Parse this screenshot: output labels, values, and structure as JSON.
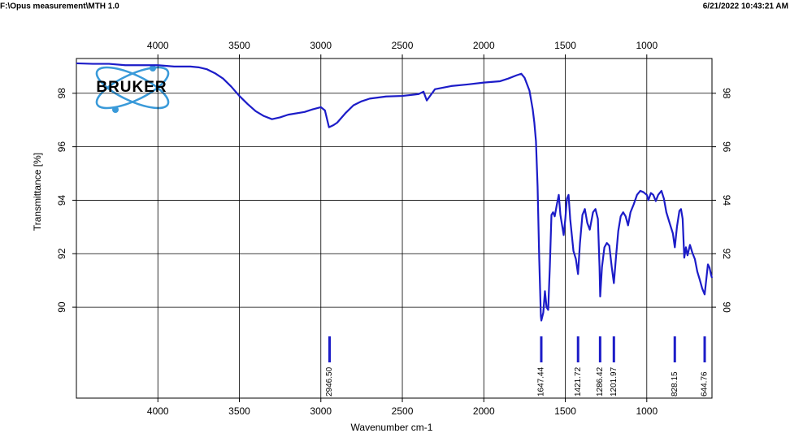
{
  "chart_data": {
    "type": "line",
    "title": "F:\\Opus measurement\\MTH 1.0",
    "timestamp": "6/21/2022 10:43:21 AM",
    "xlabel": "Wavenumber cm-1",
    "ylabel": "Transmittance [%]",
    "logo": "BRUKER",
    "xlim": [
      4500,
      600
    ],
    "ylim": [
      86.6,
      99.3
    ],
    "xticks": [
      4000,
      3500,
      3000,
      2500,
      2000,
      1500,
      1000
    ],
    "yticks": [
      90,
      92,
      94,
      96,
      98
    ],
    "grid": true,
    "color": "#1c1cc8",
    "x": [
      4500,
      4400,
      4300,
      4200,
      4100,
      4000,
      3900,
      3800,
      3750,
      3700,
      3650,
      3600,
      3550,
      3500,
      3450,
      3400,
      3350,
      3300,
      3250,
      3200,
      3100,
      3050,
      3000,
      2975,
      2950,
      2925,
      2900,
      2850,
      2800,
      2750,
      2700,
      2600,
      2500,
      2400,
      2370,
      2350,
      2330,
      2300,
      2200,
      2100,
      2000,
      1900,
      1850,
      1800,
      1770,
      1750,
      1720,
      1700,
      1690,
      1680,
      1670,
      1660,
      1650,
      1647,
      1635,
      1625,
      1615,
      1605,
      1595,
      1585,
      1575,
      1565,
      1550,
      1540,
      1530,
      1510,
      1500,
      1490,
      1480,
      1470,
      1450,
      1435,
      1422,
      1410,
      1395,
      1380,
      1365,
      1350,
      1330,
      1315,
      1300,
      1290,
      1286,
      1275,
      1260,
      1245,
      1230,
      1215,
      1202,
      1190,
      1175,
      1160,
      1145,
      1130,
      1115,
      1100,
      1080,
      1060,
      1040,
      1020,
      1000,
      990,
      975,
      960,
      945,
      930,
      910,
      895,
      880,
      860,
      840,
      828,
      815,
      800,
      790,
      780,
      770,
      760,
      750,
      735,
      720,
      705,
      690,
      675,
      660,
      645,
      635,
      625,
      615,
      605,
      600
    ],
    "series": [
      {
        "values": [
          99.12,
          99.1,
          99.1,
          99.05,
          99.05,
          99.05,
          99.0,
          99.0,
          98.97,
          98.9,
          98.75,
          98.55,
          98.25,
          97.9,
          97.6,
          97.33,
          97.15,
          97.03,
          97.1,
          97.2,
          97.3,
          97.4,
          97.48,
          97.36,
          96.73,
          96.8,
          96.9,
          97.25,
          97.55,
          97.7,
          97.8,
          97.88,
          97.9,
          97.97,
          98.06,
          97.73,
          97.9,
          98.15,
          98.27,
          98.33,
          98.4,
          98.45,
          98.55,
          98.67,
          98.73,
          98.58,
          98.1,
          97.4,
          96.9,
          96.2,
          94.5,
          91.8,
          89.67,
          89.5,
          89.8,
          90.6,
          90.0,
          89.9,
          91.5,
          93.45,
          93.55,
          93.4,
          93.9,
          94.2,
          93.45,
          92.7,
          93.3,
          94.06,
          94.2,
          93.3,
          92.1,
          91.8,
          91.24,
          92.4,
          93.45,
          93.67,
          93.15,
          92.9,
          93.55,
          93.67,
          93.3,
          91.5,
          90.4,
          91.5,
          92.24,
          92.4,
          92.3,
          91.5,
          90.9,
          91.8,
          92.85,
          93.4,
          93.55,
          93.4,
          93.06,
          93.55,
          93.85,
          94.2,
          94.35,
          94.3,
          94.2,
          94.0,
          94.27,
          94.2,
          93.97,
          94.2,
          94.35,
          94.06,
          93.55,
          93.15,
          92.76,
          92.24,
          93.0,
          93.6,
          93.67,
          93.3,
          91.85,
          92.24,
          91.94,
          92.33,
          92.03,
          91.8,
          91.33,
          91.03,
          90.7,
          90.48,
          91.03,
          91.6,
          91.48,
          91.2,
          91.1
        ]
      }
    ],
    "peaks": [
      {
        "value": 2946.5,
        "label": "2946.50"
      },
      {
        "value": 1647.44,
        "label": "1647.44"
      },
      {
        "value": 1421.72,
        "label": "1421.72"
      },
      {
        "value": 1286.42,
        "label": "1286.42"
      },
      {
        "value": 1201.97,
        "label": "1201.97"
      },
      {
        "value": 828.15,
        "label": "828.15"
      },
      {
        "value": 644.76,
        "label": "644.76"
      }
    ]
  }
}
